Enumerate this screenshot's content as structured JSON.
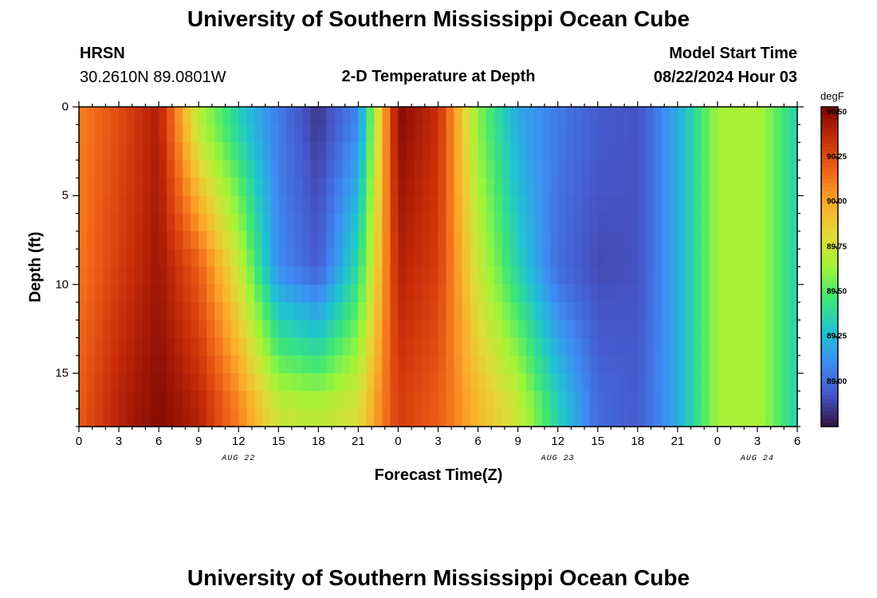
{
  "header": {
    "title": "University of Southern Mississippi Ocean Cube",
    "bottom_title": "University of Southern Mississippi Ocean Cube",
    "station": "HRSN",
    "coords": "30.2610N  89.0801W",
    "model_label": "Model Start Time",
    "model_time": "08/22/2024 Hour 03"
  },
  "chart_data": {
    "type": "heatmap",
    "title": "2-D Temperature at Depth",
    "xlabel": "Forecast Time(Z)",
    "ylabel": "Depth (ft)",
    "x_hours_range": [
      0,
      54
    ],
    "x_tick_hours": [
      0,
      3,
      6,
      9,
      12,
      15,
      18,
      21,
      24,
      27,
      30,
      33,
      36,
      39,
      42,
      45,
      48,
      51,
      54
    ],
    "x_tick_labels": [
      "0",
      "3",
      "6",
      "9",
      "12",
      "15",
      "18",
      "21",
      "0",
      "3",
      "6",
      "9",
      "12",
      "15",
      "18",
      "21",
      "0",
      "3",
      "6"
    ],
    "date_labels": [
      {
        "text": "AUG 22",
        "hour": 12
      },
      {
        "text": "AUG 23",
        "hour": 36
      },
      {
        "text": "AUG 24",
        "hour": 51
      }
    ],
    "y_range": [
      0,
      18
    ],
    "y_ticks": [
      0,
      5,
      10,
      15
    ],
    "colorbar": {
      "unit": "degF",
      "min": 88.75,
      "max": 90.53,
      "ticks": [
        89.0,
        89.25,
        89.5,
        89.75,
        90.0,
        90.25,
        90.5
      ],
      "tick_labels": [
        "89.00",
        "89.25",
        "89.50",
        "89.75",
        "90.00",
        "90.25",
        "90.50"
      ]
    },
    "series": [
      {
        "name": "temp_degF_at_1ft",
        "hours": [
          0,
          3,
          6,
          9,
          12,
          15,
          18,
          21,
          24,
          27,
          30,
          33,
          36,
          39,
          42,
          45,
          48,
          51,
          54
        ],
        "values": [
          90.1,
          90.25,
          90.42,
          89.7,
          89.35,
          89.05,
          88.85,
          89.1,
          90.5,
          90.35,
          89.6,
          89.2,
          89.05,
          88.95,
          88.92,
          89.2,
          89.65,
          89.68,
          89.35
        ]
      },
      {
        "name": "temp_degF_at_9ft",
        "hours": [
          0,
          3,
          6,
          9,
          12,
          15,
          18,
          21,
          24,
          27,
          30,
          33,
          36,
          39,
          42,
          45,
          48,
          51,
          54
        ],
        "values": [
          90.12,
          90.3,
          90.45,
          90.2,
          89.75,
          89.1,
          88.95,
          89.4,
          90.4,
          90.3,
          89.75,
          89.35,
          89.0,
          88.9,
          88.92,
          89.2,
          89.65,
          89.68,
          89.35
        ]
      },
      {
        "name": "temp_degF_at_17ft",
        "hours": [
          0,
          3,
          6,
          9,
          12,
          15,
          18,
          21,
          24,
          27,
          30,
          33,
          36,
          39,
          42,
          45,
          48,
          51,
          54
        ],
        "values": [
          90.2,
          90.4,
          90.5,
          90.4,
          90.1,
          89.75,
          89.7,
          89.8,
          90.3,
          90.2,
          89.95,
          89.75,
          89.35,
          89.0,
          88.95,
          89.2,
          89.65,
          89.68,
          89.35
        ]
      }
    ]
  }
}
